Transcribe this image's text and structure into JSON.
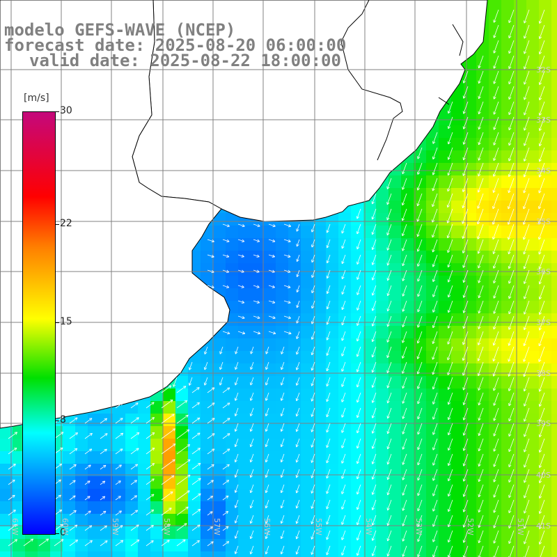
{
  "title": {
    "model": "modelo GEFS-WAVE (NCEP)",
    "forecast": "forecast date: 2025-08-20 06:00:00",
    "valid": "valid date: 2025-08-22 18:00:00"
  },
  "colorbar": {
    "unit": "[m/s]",
    "ticks": [
      {
        "label": "30",
        "value": 30
      },
      {
        "label": "22",
        "value": 22
      },
      {
        "label": "15",
        "value": 15
      },
      {
        "label": "8",
        "value": 8
      },
      {
        "label": "0",
        "value": 0
      }
    ],
    "min": 0,
    "max": 30
  },
  "grid": {
    "lat_labels": [
      "32S",
      "33S",
      "34S",
      "35S",
      "36S",
      "37S",
      "38S",
      "39S",
      "40S",
      "41S"
    ],
    "lon_labels": [
      "61W",
      "60W",
      "59W",
      "58W",
      "57W",
      "56W",
      "55W",
      "54W",
      "53W",
      "52W",
      "51W"
    ]
  },
  "colors": {
    "land": "#ffffff",
    "coast": "#000000",
    "grid": "#808080",
    "arrow": "#ffffff"
  }
}
